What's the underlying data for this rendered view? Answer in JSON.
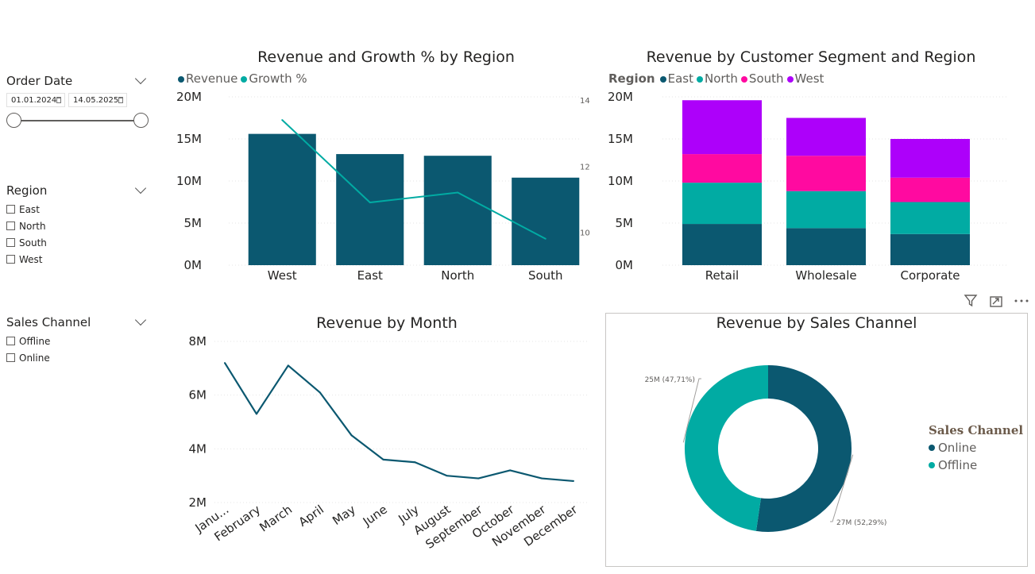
{
  "slicers": {
    "order_date": {
      "title": "Order Date",
      "start": "01.01.2024",
      "end": "14.05.2025",
      "range": [
        0,
        1
      ]
    },
    "region": {
      "title": "Region",
      "items": [
        "East",
        "North",
        "South",
        "West"
      ]
    },
    "sales_channel": {
      "title": "Sales Channel",
      "items": [
        "Offline",
        "Online"
      ]
    }
  },
  "colors": {
    "revenue": "#0b5870",
    "growth": "#01aba3",
    "east": "#0b5870",
    "north": "#01aba3",
    "south": "#ff0aa0",
    "west": "#ad00fa",
    "online": "#0b5870",
    "offline": "#01aba3"
  },
  "chart_data": [
    {
      "id": "revenue_growth_by_region",
      "type": "bar",
      "title": "Revenue and Growth % by Region",
      "legend": [
        "Revenue",
        "Growth %"
      ],
      "categories": [
        "West",
        "East",
        "North",
        "South"
      ],
      "series": [
        {
          "name": "Revenue",
          "type": "bar",
          "values": [
            15.6,
            13.2,
            13.0,
            10.4
          ]
        },
        {
          "name": "Growth %",
          "type": "line",
          "values": [
            13.4,
            10.9,
            11.2,
            9.8
          ]
        }
      ],
      "y_ticks": [
        "20M",
        "15M",
        "10M",
        "5M",
        "0M"
      ],
      "y2_ticks": [
        "14",
        "12",
        "10"
      ],
      "ylim": [
        0,
        20
      ],
      "y2lim": [
        9,
        14.1
      ]
    },
    {
      "id": "revenue_by_segment_region",
      "type": "bar",
      "stacked": true,
      "title": "Revenue by Customer Segment and Region",
      "legend_title": "Region",
      "legend": [
        "East",
        "North",
        "South",
        "West"
      ],
      "categories": [
        "Retail",
        "Wholesale",
        "Corporate"
      ],
      "series": [
        {
          "name": "East",
          "values": [
            4.9,
            4.4,
            3.7
          ]
        },
        {
          "name": "North",
          "values": [
            4.9,
            4.4,
            3.8
          ]
        },
        {
          "name": "South",
          "values": [
            3.4,
            4.2,
            2.9
          ]
        },
        {
          "name": "West",
          "values": [
            6.4,
            4.5,
            4.6
          ]
        }
      ],
      "y_ticks": [
        "20M",
        "15M",
        "10M",
        "5M",
        "0M"
      ],
      "ylim": [
        0,
        20
      ]
    },
    {
      "id": "revenue_by_month",
      "type": "line",
      "title": "Revenue by Month",
      "categories": [
        "Janu...",
        "February",
        "March",
        "April",
        "May",
        "June",
        "July",
        "August",
        "September",
        "October",
        "November",
        "December"
      ],
      "values": [
        7.2,
        5.3,
        7.1,
        6.1,
        4.5,
        3.6,
        3.5,
        3.0,
        2.9,
        3.2,
        2.9,
        2.8
      ],
      "y_ticks": [
        "8M",
        "6M",
        "4M",
        "2M"
      ],
      "ylim": [
        2,
        8
      ]
    },
    {
      "id": "revenue_by_sales_channel",
      "type": "pie",
      "donut": true,
      "title": "Revenue by Sales Channel",
      "legend_title": "Sales Channel",
      "legend": [
        "Online",
        "Offline"
      ],
      "slices": [
        {
          "name": "Online",
          "value": 52.29,
          "label": "27M (52,29%)"
        },
        {
          "name": "Offline",
          "value": 47.71,
          "label": "25M (47,71%)"
        }
      ]
    }
  ]
}
